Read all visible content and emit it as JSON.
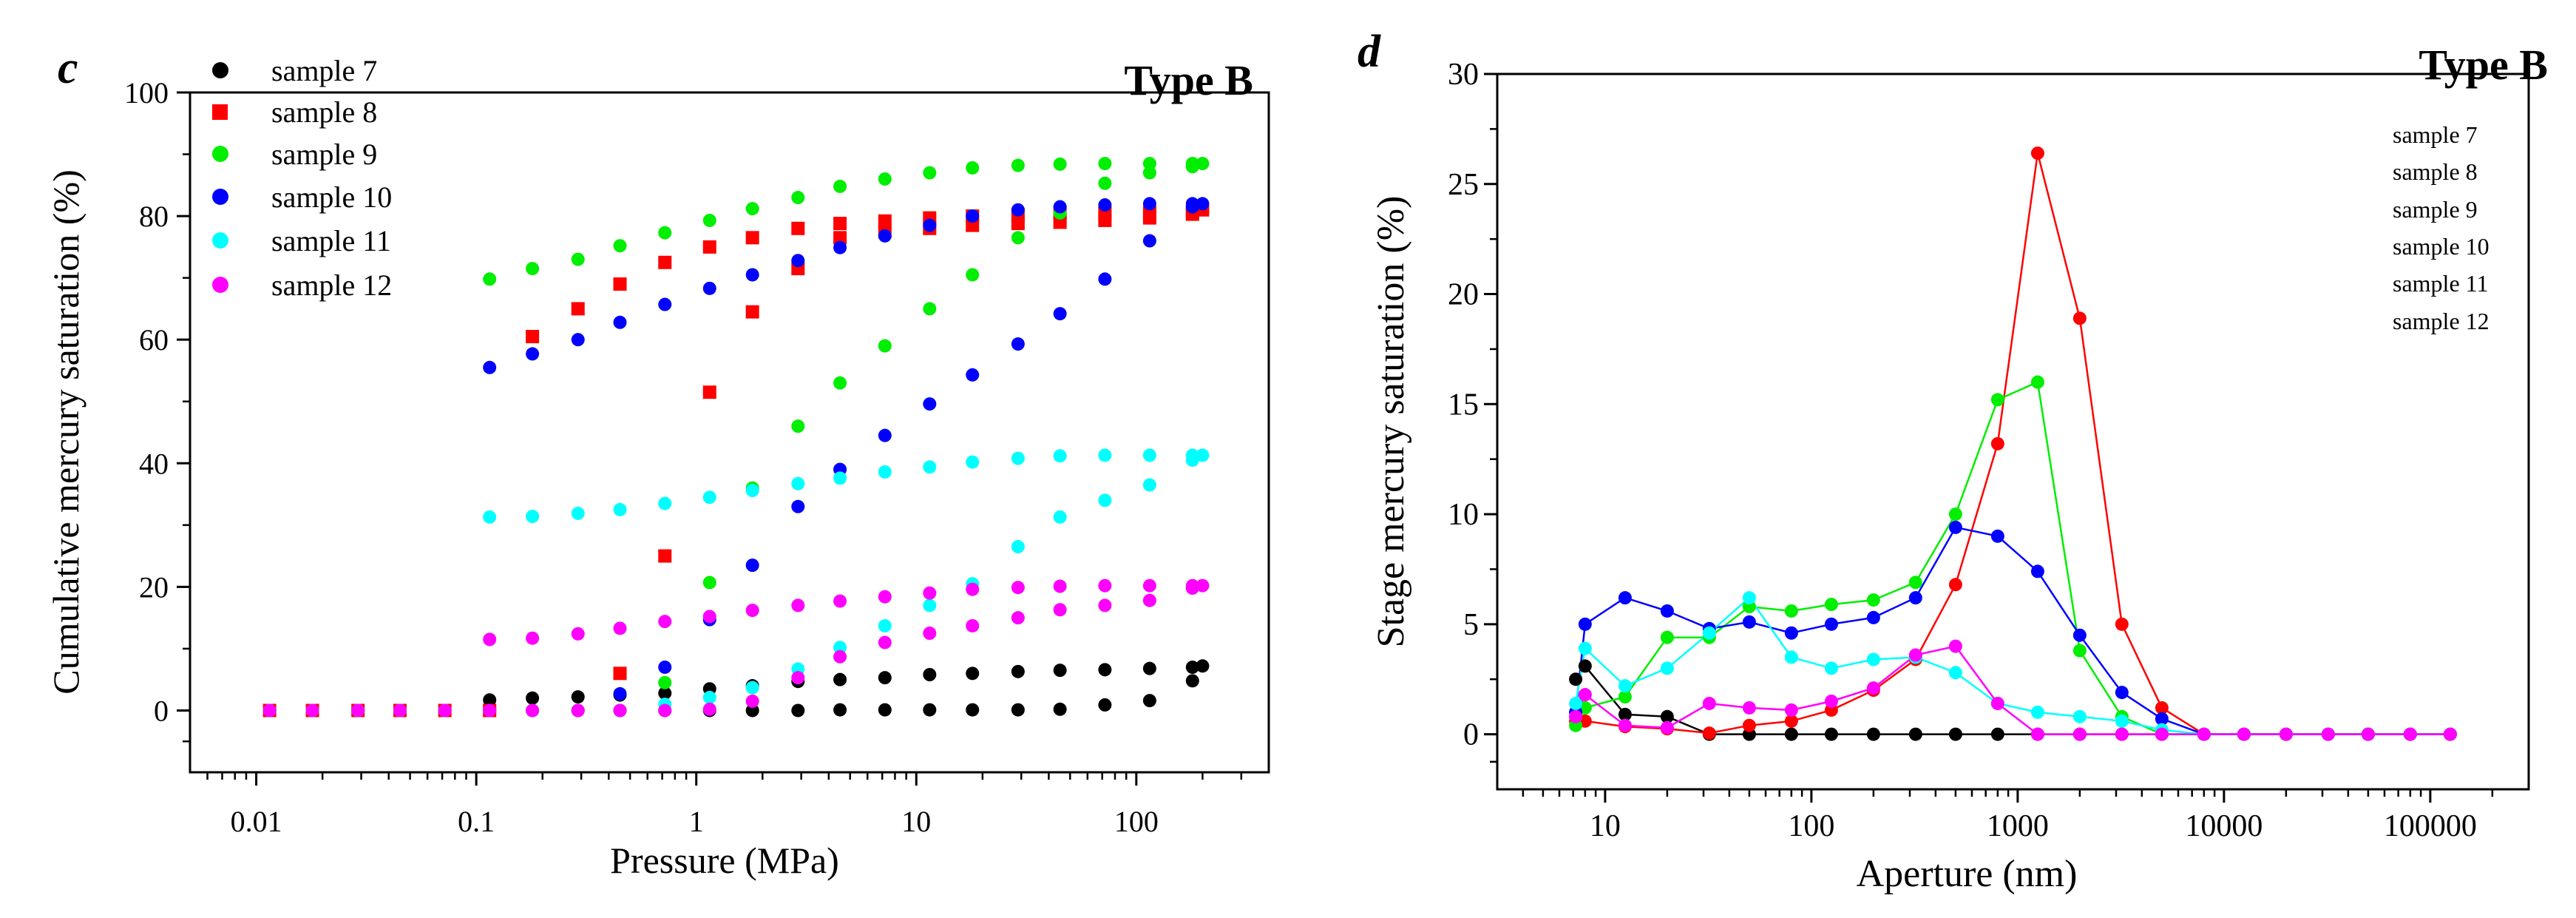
{
  "colors": {
    "sample7": "#000000",
    "sample8": "#ff0000",
    "sample9": "#00ee00",
    "sample10": "#0000ff",
    "sample11": "#00ffff",
    "sample12": "#ff00ff"
  },
  "chart_data": [
    {
      "panel": "c",
      "type": "scatter",
      "title": "Type B",
      "xlabel": "Pressure (MPa)",
      "ylabel": "Cumulative  mercury saturation (%)",
      "xscale": "log",
      "xlim": [
        0.005,
        400
      ],
      "ylim": [
        -10,
        100
      ],
      "xticks": [
        0.01,
        0.1,
        1,
        10,
        100
      ],
      "xtick_labels": [
        "0.01",
        "0.1",
        "1",
        "10",
        "100"
      ],
      "yticks": [
        0,
        20,
        40,
        60,
        80,
        100
      ],
      "ytick_labels": [
        "0",
        "20",
        "40",
        "60",
        "80",
        "100"
      ],
      "legend_position": "top-left",
      "series": [
        {
          "name": "sample 7",
          "color_key": "sample7",
          "marker": "circle",
          "x": [
            0.0115,
            0.018,
            0.029,
            0.045,
            0.072,
            0.115,
            0.18,
            0.29,
            0.45,
            0.72,
            1.15,
            1.8,
            2.9,
            4.5,
            7.2,
            11.5,
            18,
            29,
            45,
            72,
            115,
            180,
            200,
            180,
            115,
            72,
            45,
            29,
            18,
            11.5,
            7.2,
            4.5,
            2.9,
            1.8,
            1.15,
            0.72,
            0.45,
            0.29,
            0.18,
            0.115
          ],
          "y": [
            0,
            0,
            0,
            0,
            0,
            1.7,
            2,
            2.2,
            2.5,
            2.8,
            3.5,
            4,
            4.7,
            5,
            5.3,
            5.8,
            6,
            6.3,
            6.5,
            6.6,
            6.8,
            7,
            7.2,
            4.8,
            1.6,
            0.9,
            0.2,
            0.1,
            0.1,
            0.1,
            0.1,
            0.1,
            0,
            0,
            0,
            0,
            0,
            0,
            0,
            0
          ]
        },
        {
          "name": "sample 8",
          "color_key": "sample8",
          "marker": "square",
          "x": [
            0.0115,
            0.018,
            0.029,
            0.045,
            0.072,
            0.115,
            0.18,
            0.29,
            0.45,
            0.72,
            1.15,
            1.8,
            2.9,
            4.5,
            7.2,
            11.5,
            18,
            29,
            45,
            72,
            115,
            180,
            200,
            180,
            115,
            72,
            45,
            29,
            18,
            11.5,
            7.2,
            4.5,
            2.9,
            1.8,
            1.15,
            0.72,
            0.45
          ],
          "y": [
            0,
            0,
            0,
            0,
            0,
            0,
            60.5,
            65,
            69,
            72.5,
            75,
            76.5,
            78,
            78.8,
            79.2,
            79.7,
            80,
            80.2,
            80.4,
            80.5,
            80.6,
            80.8,
            81,
            80.3,
            79.7,
            79.3,
            79,
            78.8,
            78.5,
            78,
            77.5,
            76.5,
            71.5,
            64.5,
            51.5,
            25,
            6
          ]
        },
        {
          "name": "sample 9",
          "color_key": "sample9",
          "marker": "circle",
          "x": [
            0.0115,
            0.018,
            0.029,
            0.045,
            0.072,
            0.115,
            0.18,
            0.29,
            0.45,
            0.72,
            1.15,
            1.8,
            2.9,
            4.5,
            7.2,
            11.5,
            18,
            29,
            45,
            72,
            115,
            180,
            200,
            180,
            115,
            72,
            45,
            29,
            18,
            11.5,
            7.2,
            4.5,
            2.9,
            1.8,
            1.15,
            0.72
          ],
          "y": [
            0,
            0,
            0,
            0,
            0,
            69.8,
            71.5,
            73,
            75.2,
            77.3,
            79.3,
            81.2,
            83,
            84.8,
            86,
            87,
            87.8,
            88.2,
            88.4,
            88.5,
            88.5,
            88.5,
            88.5,
            88,
            87,
            85.3,
            80.5,
            76.5,
            70.5,
            65,
            59,
            53,
            46,
            36,
            20.7,
            4.5
          ]
        },
        {
          "name": "sample 10",
          "color_key": "sample10",
          "marker": "circle",
          "x": [
            0.0115,
            0.018,
            0.029,
            0.045,
            0.072,
            0.115,
            0.18,
            0.29,
            0.45,
            0.72,
            1.15,
            1.8,
            2.9,
            4.5,
            7.2,
            11.5,
            18,
            29,
            45,
            72,
            115,
            180,
            200,
            180,
            115,
            72,
            45,
            29,
            18,
            11.5,
            7.2,
            4.5,
            2.9,
            1.8,
            1.15,
            0.72,
            0.45
          ],
          "y": [
            0,
            0,
            0,
            0,
            0,
            55.5,
            57.7,
            60,
            62.8,
            65.7,
            68.3,
            70.5,
            72.8,
            74.9,
            76.8,
            78.5,
            80,
            81,
            81.5,
            81.8,
            82,
            82,
            82,
            81.5,
            76,
            69.8,
            64.2,
            59.3,
            54.3,
            49.6,
            44.5,
            39,
            33,
            23.5,
            14.7,
            7,
            2.7
          ]
        },
        {
          "name": "sample 11",
          "color_key": "sample11",
          "marker": "circle",
          "x": [
            0.0115,
            0.018,
            0.029,
            0.045,
            0.072,
            0.115,
            0.18,
            0.29,
            0.45,
            0.72,
            1.15,
            1.8,
            2.9,
            4.5,
            7.2,
            11.5,
            18,
            29,
            45,
            72,
            115,
            180,
            200,
            180,
            115,
            72,
            45,
            29,
            18,
            11.5,
            7.2,
            4.5,
            2.9,
            1.8,
            1.15,
            0.72
          ],
          "y": [
            0,
            0,
            0,
            0,
            0,
            31.3,
            31.4,
            31.9,
            32.5,
            33.5,
            34.5,
            35.6,
            36.7,
            37.6,
            38.6,
            39.4,
            40.2,
            40.8,
            41.2,
            41.3,
            41.3,
            41.3,
            41.3,
            40.5,
            36.5,
            34,
            31.3,
            26.5,
            20.5,
            17,
            13.7,
            10.2,
            6.7,
            3.7,
            2.1,
            1
          ]
        },
        {
          "name": "sample 12",
          "color_key": "sample12",
          "marker": "circle",
          "x": [
            0.0115,
            0.018,
            0.029,
            0.045,
            0.072,
            0.115,
            0.18,
            0.29,
            0.45,
            0.72,
            1.15,
            1.8,
            2.9,
            4.5,
            7.2,
            11.5,
            18,
            29,
            45,
            72,
            115,
            180,
            200,
            180,
            115,
            72,
            45,
            29,
            18,
            11.5,
            7.2,
            4.5,
            2.9,
            1.8,
            1.15,
            0.72,
            0.45,
            0.29,
            0.18,
            0.115
          ],
          "y": [
            0,
            0,
            0,
            0,
            0,
            11.5,
            11.7,
            12.4,
            13.3,
            14.4,
            15.2,
            16.2,
            17,
            17.7,
            18.4,
            19,
            19.6,
            19.9,
            20.1,
            20.2,
            20.2,
            20.2,
            20.2,
            19.8,
            17.8,
            17,
            16.3,
            15,
            13.7,
            12.5,
            11,
            8.7,
            5.3,
            1.5,
            0.2,
            0,
            0,
            0,
            0,
            0
          ]
        }
      ]
    },
    {
      "panel": "d",
      "type": "line",
      "title": "Type B",
      "xlabel": "Aperture (nm)",
      "ylabel": "Stage mercury saturation (%)",
      "xscale": "log",
      "xlim": [
        3,
        300000
      ],
      "ylim": [
        -2.5,
        30
      ],
      "xticks": [
        10,
        100,
        1000,
        10000,
        100000
      ],
      "xtick_labels": [
        "10",
        "100",
        "1000",
        "10000",
        "100000"
      ],
      "yticks": [
        0,
        5,
        10,
        15,
        20,
        25,
        30
      ],
      "ytick_labels": [
        "0",
        "5",
        "10",
        "15",
        "20",
        "25",
        "30"
      ],
      "legend_position": "top-right",
      "series": [
        {
          "name": "sample 7",
          "color_key": "sample7",
          "x": [
            7.2,
            8,
            12.5,
            20,
            32,
            50,
            80,
            125,
            200,
            320,
            500,
            800,
            1250,
            2000,
            3200,
            5000,
            8000,
            12500,
            20000,
            32000,
            50000,
            80000,
            125000
          ],
          "y": [
            2.5,
            3.1,
            0.9,
            0.8,
            0,
            0,
            0,
            0,
            0,
            0,
            0,
            0,
            0,
            0,
            0,
            0,
            0,
            0,
            0,
            0,
            0,
            0,
            0
          ]
        },
        {
          "name": "sample 8",
          "color_key": "sample8",
          "x": [
            7.2,
            8,
            12.5,
            20,
            32,
            50,
            80,
            125,
            200,
            320,
            500,
            800,
            1250,
            2000,
            3200,
            5000,
            8000,
            12500,
            20000,
            32000,
            50000,
            80000,
            125000
          ],
          "y": [
            0.6,
            0.6,
            0.35,
            0.25,
            0.05,
            0.4,
            0.6,
            1.1,
            2,
            3.4,
            6.8,
            13.2,
            26.4,
            18.9,
            5,
            1.2,
            0,
            0,
            0,
            0,
            0,
            0,
            0
          ]
        },
        {
          "name": "sample 9",
          "color_key": "sample9",
          "x": [
            7.2,
            8,
            12.5,
            20,
            32,
            50,
            80,
            125,
            200,
            320,
            500,
            800,
            1250,
            2000,
            3200,
            5000,
            8000,
            12500,
            20000,
            32000,
            50000,
            80000,
            125000
          ],
          "y": [
            0.4,
            1.2,
            1.7,
            4.4,
            4.4,
            5.8,
            5.6,
            5.9,
            6.1,
            6.9,
            10,
            15.2,
            16,
            3.8,
            0.8,
            0,
            0,
            0,
            0,
            0,
            0,
            0,
            0
          ]
        },
        {
          "name": "sample 10",
          "color_key": "sample10",
          "x": [
            7.2,
            8,
            12.5,
            20,
            32,
            50,
            80,
            125,
            200,
            320,
            500,
            800,
            1250,
            2000,
            3200,
            5000,
            8000,
            12500,
            20000,
            32000,
            50000,
            80000,
            125000
          ],
          "y": [
            1,
            5,
            6.2,
            5.6,
            4.8,
            5.1,
            4.6,
            5,
            5.3,
            6.2,
            9.4,
            9,
            7.4,
            4.5,
            1.9,
            0.7,
            0,
            0,
            0,
            0,
            0,
            0,
            0
          ]
        },
        {
          "name": "sample 11",
          "color_key": "sample11",
          "x": [
            7.2,
            8,
            12.5,
            20,
            32,
            50,
            80,
            125,
            200,
            320,
            500,
            800,
            1250,
            2000,
            3200,
            5000,
            8000,
            12500,
            20000,
            32000,
            50000,
            80000,
            125000
          ],
          "y": [
            1.4,
            3.9,
            2.2,
            3,
            4.6,
            6.2,
            3.5,
            3,
            3.4,
            3.5,
            2.8,
            1.4,
            1,
            0.8,
            0.6,
            0.2,
            0,
            0,
            0,
            0,
            0,
            0,
            0
          ]
        },
        {
          "name": "sample 12",
          "color_key": "sample12",
          "x": [
            7.2,
            8,
            12.5,
            20,
            32,
            50,
            80,
            125,
            200,
            320,
            500,
            800,
            1250,
            2000,
            3200,
            5000,
            8000,
            12500,
            20000,
            32000,
            50000,
            80000,
            125000
          ],
          "y": [
            0.8,
            1.8,
            0.4,
            0.3,
            1.4,
            1.2,
            1.1,
            1.5,
            2.1,
            3.6,
            4,
            1.4,
            0,
            0,
            0,
            0,
            0,
            0,
            0,
            0,
            0,
            0,
            0
          ]
        }
      ]
    }
  ],
  "panel_c": {
    "label": "c",
    "title": "Type B",
    "xlabel": "Pressure (MPa)",
    "ylabel": "Cumulative  mercury saturation (%)",
    "legend": [
      "sample 7",
      "sample 8",
      "sample 9",
      "sample 10",
      "sample 11",
      "sample 12"
    ]
  },
  "panel_d": {
    "label": "d",
    "title": "Type B",
    "xlabel": "Aperture (nm)",
    "ylabel": "Stage mercury saturation (%)",
    "legend": [
      "sample 7",
      "sample 8",
      "sample 9",
      "sample 10",
      "sample 11",
      "sample 12"
    ]
  }
}
